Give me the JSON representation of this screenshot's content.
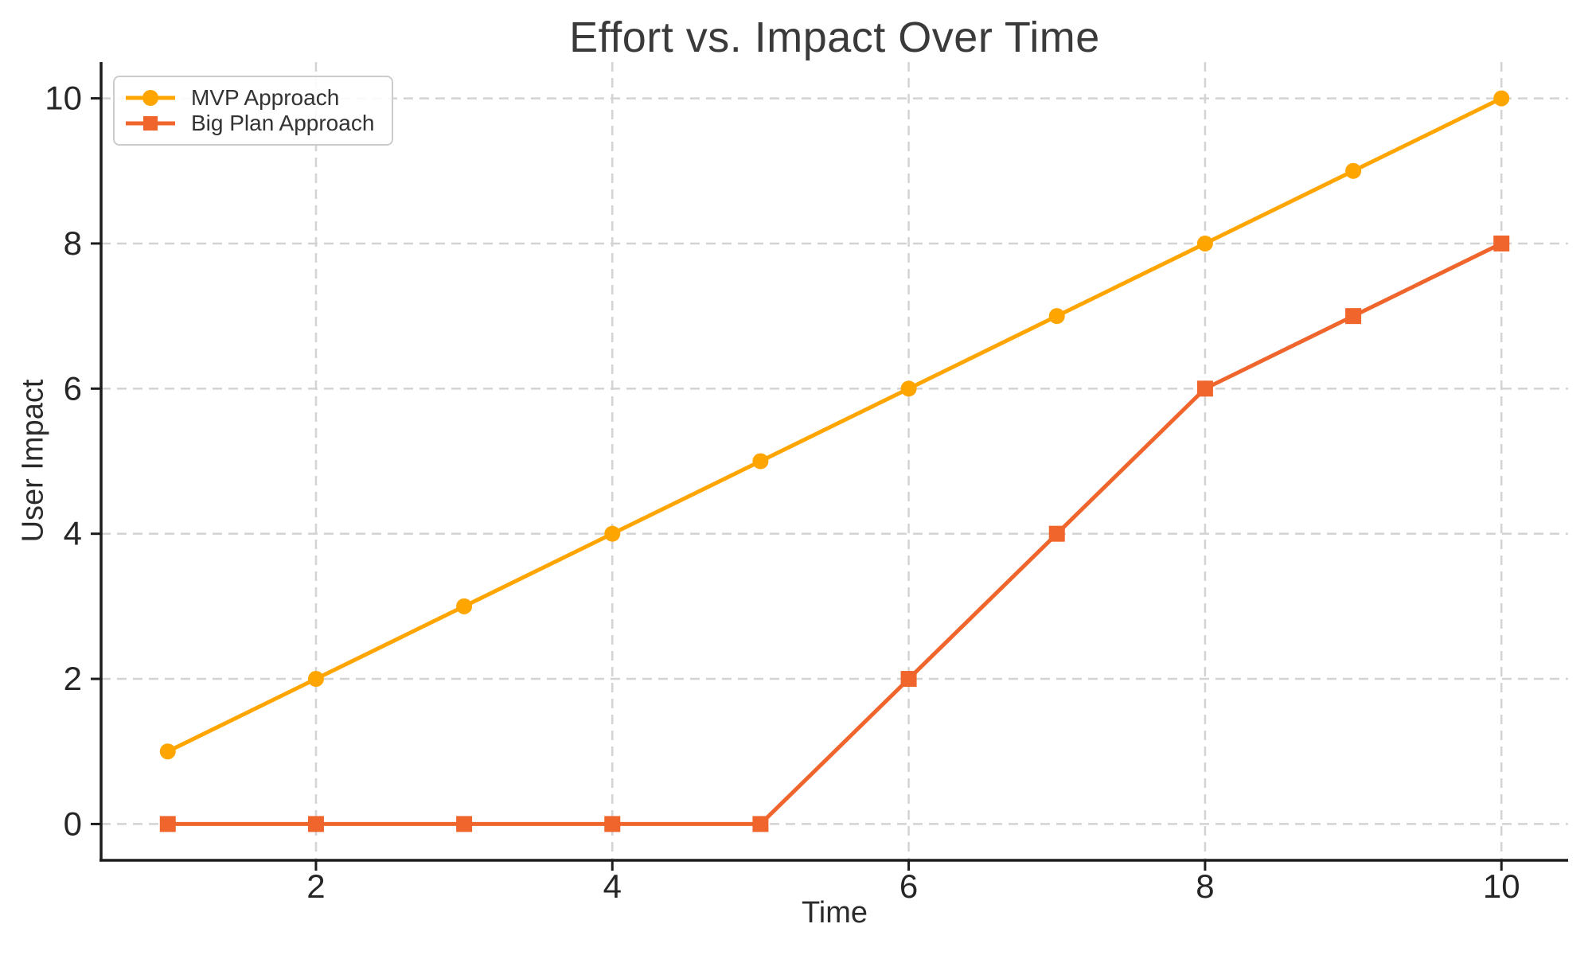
{
  "chart_data": {
    "type": "line",
    "title": "Effort vs. Impact Over Time",
    "xlabel": "Time",
    "ylabel": "User Impact",
    "x": [
      1,
      2,
      3,
      4,
      5,
      6,
      7,
      8,
      9,
      10
    ],
    "series": [
      {
        "name": "MVP Approach",
        "values": [
          1,
          2,
          3,
          4,
          5,
          6,
          7,
          8,
          9,
          10
        ],
        "color": "#FFA500",
        "marker": "circle"
      },
      {
        "name": "Big Plan Approach",
        "values": [
          0,
          0,
          0,
          0,
          0,
          2,
          4,
          6,
          7,
          8
        ],
        "color": "#F0652C",
        "marker": "square"
      }
    ],
    "xticks": [
      2,
      4,
      6,
      8,
      10
    ],
    "yticks": [
      0,
      2,
      4,
      6,
      8,
      10
    ],
    "xlim": [
      0.55,
      10.45
    ],
    "ylim": [
      -0.5,
      10.5
    ],
    "grid": true,
    "grid_style": "dashed",
    "legend_position": "upper left"
  },
  "styles": {
    "grid_color": "#D3D3D3",
    "spine_color": "#1C1C1C",
    "tick_label_color": "#262626",
    "title_color": "#3A3A3A",
    "axis_label_color": "#2B2B2B",
    "legend_text_color": "#333333",
    "legend_border_color": "#CCCCCC",
    "background_color": "#FFFFFF"
  }
}
